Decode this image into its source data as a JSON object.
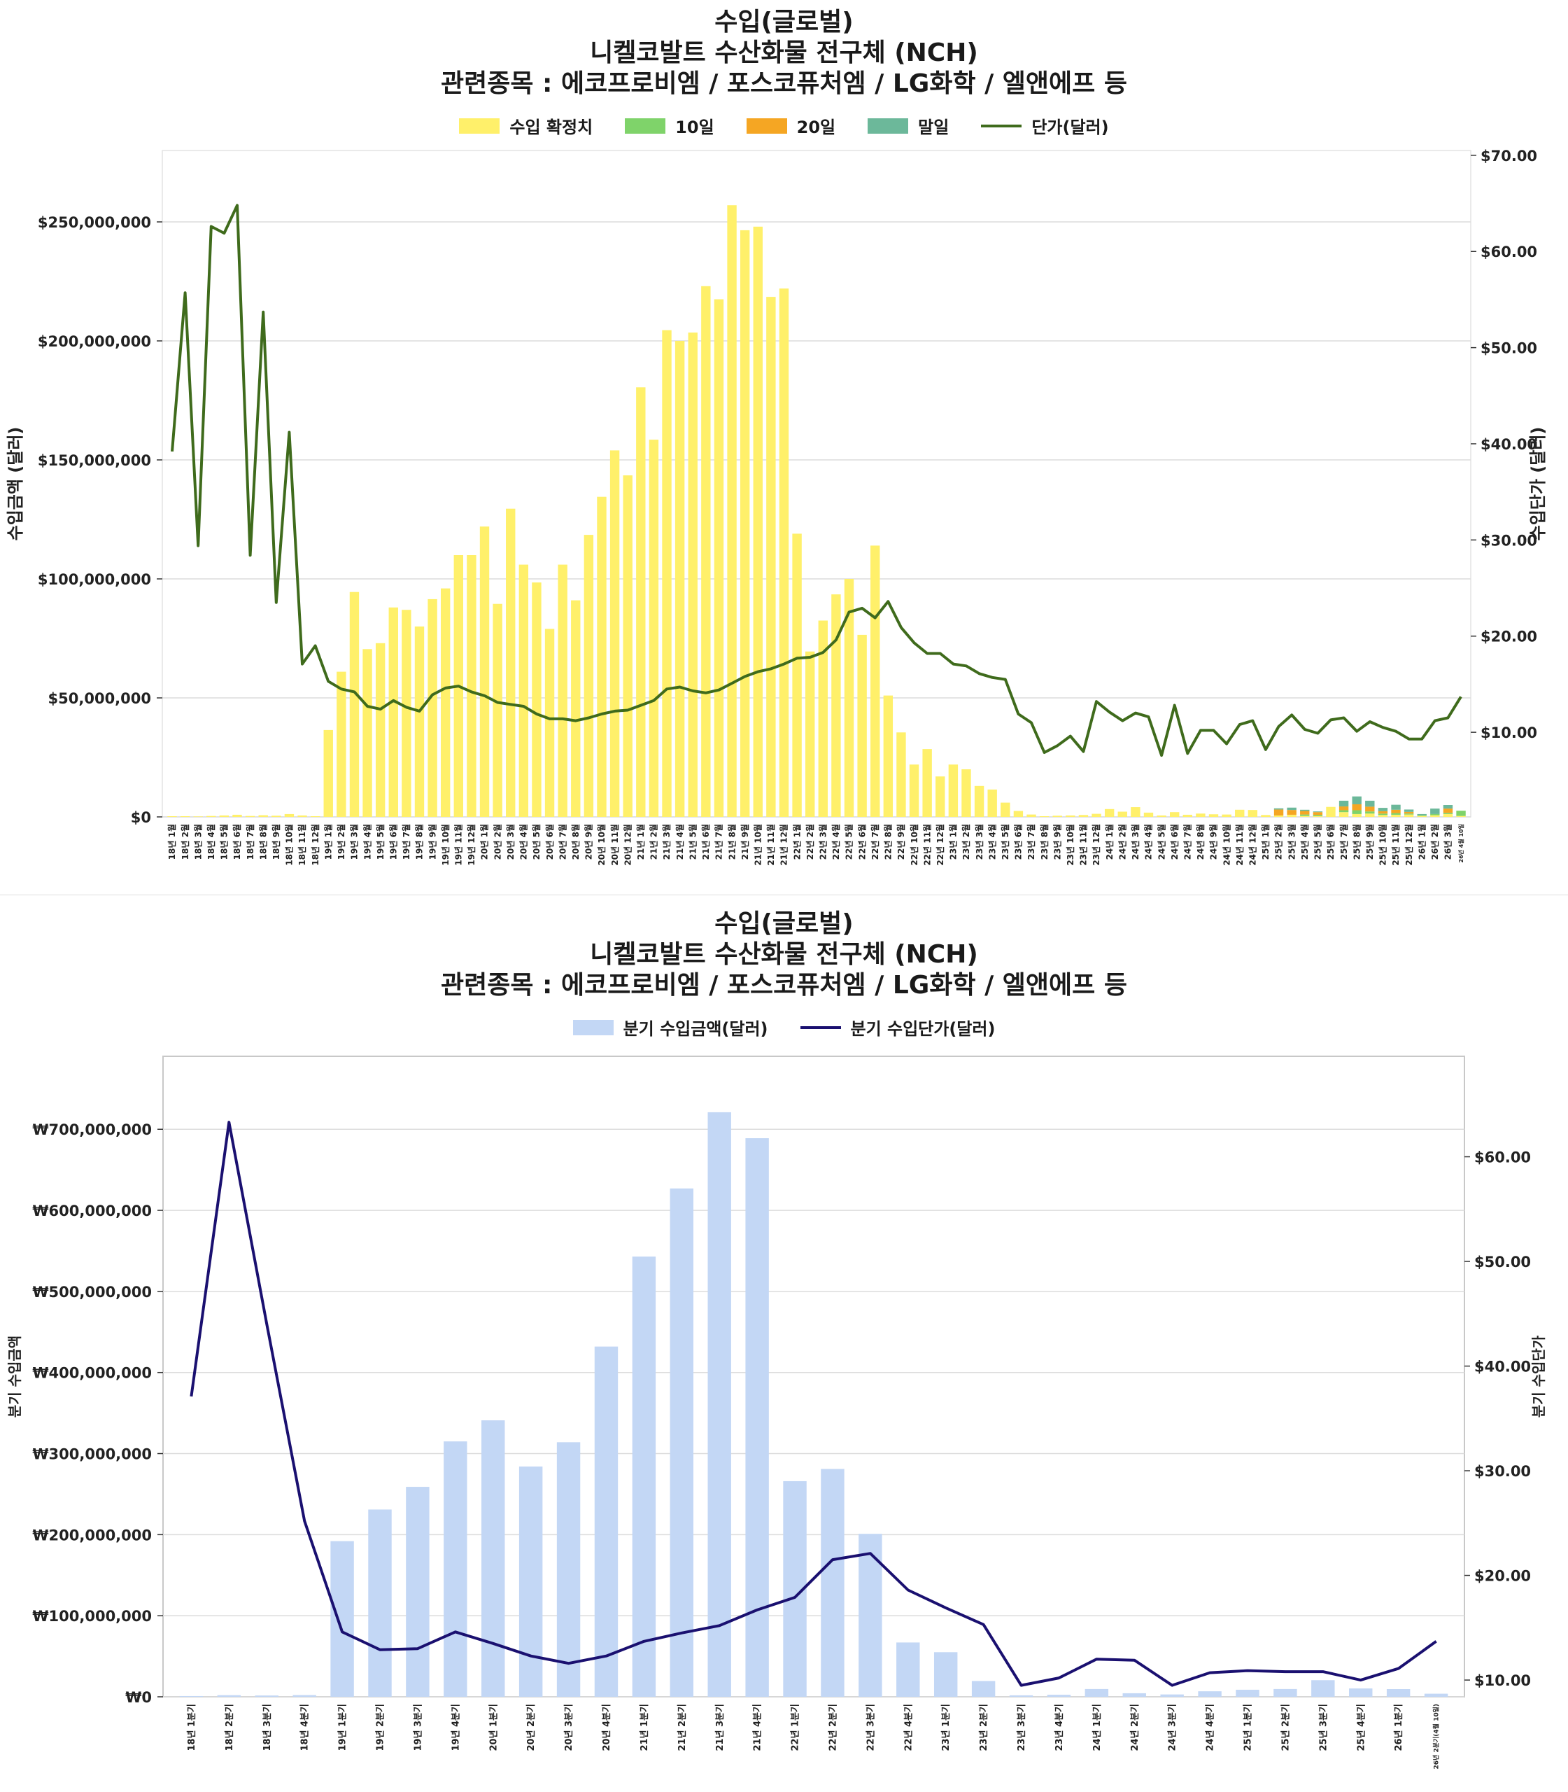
{
  "charts": [
    {
      "id": "monthly",
      "title_lines": [
        "수입(글로벌)",
        "니켈코발트 수산화물 전구체 (NCH)",
        "관련종목 : 에코프로비엠 / 포스코퓨처엠 / LG화학 / 엘앤에프 등"
      ],
      "legend": [
        {
          "label": "수입 확정치",
          "kind": "box",
          "color": "#fff06a"
        },
        {
          "label": "10일",
          "kind": "box",
          "color": "#7fd36a"
        },
        {
          "label": "20일",
          "kind": "box",
          "color": "#f5a623"
        },
        {
          "label": "말일",
          "kind": "box",
          "color": "#6cb89a"
        },
        {
          "label": "단가(달러)",
          "kind": "line",
          "color": "#3f6b1c"
        }
      ]
    },
    {
      "id": "quarterly",
      "title_lines": [
        "수입(글로벌)",
        "니켈코발트 수산화물 전구체 (NCH)",
        "관련종목 : 에코프로비엠 / 포스코퓨처엠 / LG화학 / 엘앤에프 등"
      ],
      "legend": [
        {
          "label": "분기 수입금액(달러)",
          "kind": "box",
          "color": "#c3d7f5"
        },
        {
          "label": "분기 수입단가(달러)",
          "kind": "line",
          "color": "#1a1070"
        }
      ]
    }
  ],
  "chart_data": [
    {
      "type": "bar",
      "subtype": "stacked bar + line (dual axis)",
      "ylabel": "수입금액 (달러)",
      "y2label": "수입단가 (달러)",
      "ylim": [
        0,
        280000000
      ],
      "y2lim": [
        1.2,
        70.5
      ],
      "y_ticks": [
        0,
        50000000,
        100000000,
        150000000,
        200000000,
        250000000
      ],
      "y_tick_labels": [
        "$0",
        "$50,000,000",
        "$100,000,000",
        "$150,000,000",
        "$200,000,000",
        "$250,000,000"
      ],
      "y2_ticks": [
        10,
        20,
        30,
        40,
        50,
        60,
        70
      ],
      "y2_tick_labels": [
        "$10.00",
        "$20.00",
        "$30.00",
        "$40.00",
        "$50.00",
        "$60.00",
        "$70.00"
      ],
      "grid": true,
      "legend_position": "top-center",
      "categories": [
        "18년 1월",
        "18년 2월",
        "18년 3월",
        "18년 4월",
        "18년 5월",
        "18년 6월",
        "18년 7월",
        "18년 8월",
        "18년 9월",
        "18년 10월",
        "18년 11월",
        "18년 12월",
        "19년 1월",
        "19년 2월",
        "19년 3월",
        "19년 4월",
        "19년 5월",
        "19년 6월",
        "19년 7월",
        "19년 8월",
        "19년 9월",
        "19년 10월",
        "19년 11월",
        "19년 12월",
        "20년 1월",
        "20년 2월",
        "20년 3월",
        "20년 4월",
        "20년 5월",
        "20년 6월",
        "20년 7월",
        "20년 8월",
        "20년 9월",
        "20년 10월",
        "20년 11월",
        "20년 12월",
        "21년 1월",
        "21년 2월",
        "21년 3월",
        "21년 4월",
        "21년 5월",
        "21년 6월",
        "21년 7월",
        "21년 8월",
        "21년 9월",
        "21년 10월",
        "21년 11월",
        "21년 12월",
        "22년 1월",
        "22년 2월",
        "22년 3월",
        "22년 4월",
        "22년 5월",
        "22년 6월",
        "22년 7월",
        "22년 8월",
        "22년 9월",
        "22년 10월",
        "22년 11월",
        "22년 12월",
        "23년 1월",
        "23년 2월",
        "23년 3월",
        "23년 4월",
        "23년 5월",
        "23년 6월",
        "23년 7월",
        "23년 8월",
        "23년 9월",
        "23년 10월",
        "23년 11월",
        "23년 12월",
        "24년 1월",
        "24년 2월",
        "24년 3월",
        "24년 4월",
        "24년 5월",
        "24년 6월",
        "24년 7월",
        "24년 8월",
        "24년 9월",
        "24년 10월",
        "24년 11월",
        "24년 12월",
        "25년 1월",
        "25년 2월",
        "25년 3월",
        "25년 4월",
        "25년 5월",
        "25년 6월",
        "25년 7월",
        "25년 8월",
        "25년 9월",
        "25년 10월",
        "25년 11월",
        "25년 12월",
        "26년 1월",
        "26년 2월",
        "26년 3월",
        "26년 4월 10일"
      ],
      "series": [
        {
          "name": "수입 확정치",
          "kind": "bar",
          "color": "#fff06a",
          "values": [
            300000,
            300000,
            200000,
            400000,
            600000,
            900000,
            400000,
            700000,
            500000,
            1200000,
            600000,
            300000,
            36500000,
            61000000,
            94500000,
            70500000,
            73000000,
            88000000,
            87000000,
            80000000,
            91500000,
            96000000,
            110000000,
            110000000,
            122000000,
            89500000,
            129500000,
            106000000,
            98500000,
            79000000,
            106000000,
            91000000,
            118500000,
            134500000,
            154000000,
            143500000,
            180500000,
            158500000,
            204500000,
            200000000,
            203500000,
            223000000,
            217500000,
            257000000,
            246500000,
            248000000,
            218500000,
            222000000,
            119000000,
            69500000,
            82500000,
            93500000,
            100000000,
            76500000,
            114000000,
            51000000,
            35500000,
            22000000,
            28500000,
            17000000,
            22000000,
            20000000,
            13000000,
            11500000,
            6000000,
            2500000,
            1000000,
            300000,
            500000,
            600000,
            800000,
            1300000,
            3300000,
            2200000,
            4100000,
            1800000,
            600000,
            2000000,
            900000,
            1400000,
            1100000,
            1000000,
            3000000,
            2900000,
            800000,
            600000,
            900000,
            400000,
            300000,
            4200000,
            2000000,
            1200000,
            1400000,
            800000,
            900000,
            1000000,
            400000,
            700000,
            1200000,
            400000
          ]
        },
        {
          "name": "10일",
          "kind": "bar",
          "color": "#7fd36a",
          "values": [
            0,
            0,
            0,
            0,
            0,
            0,
            0,
            0,
            0,
            0,
            0,
            0,
            0,
            0,
            0,
            0,
            0,
            0,
            0,
            0,
            0,
            0,
            0,
            0,
            0,
            0,
            0,
            0,
            0,
            0,
            0,
            0,
            0,
            0,
            0,
            0,
            0,
            0,
            0,
            0,
            0,
            0,
            0,
            0,
            0,
            0,
            0,
            0,
            0,
            0,
            0,
            0,
            0,
            0,
            0,
            0,
            0,
            0,
            0,
            0,
            0,
            0,
            0,
            0,
            0,
            0,
            0,
            0,
            0,
            0,
            0,
            0,
            0,
            0,
            0,
            0,
            0,
            0,
            0,
            0,
            0,
            0,
            0,
            0,
            0,
            0,
            0,
            600000,
            500000,
            0,
            800000,
            1600000,
            900000,
            600000,
            700000,
            400000,
            300000,
            500000,
            500000,
            2200000
          ]
        },
        {
          "name": "20일",
          "kind": "bar",
          "color": "#f5a623",
          "values": [
            0,
            0,
            0,
            0,
            0,
            0,
            0,
            0,
            0,
            0,
            0,
            0,
            0,
            0,
            0,
            0,
            0,
            0,
            0,
            0,
            0,
            0,
            0,
            0,
            0,
            0,
            0,
            0,
            0,
            0,
            0,
            0,
            0,
            0,
            0,
            0,
            0,
            0,
            0,
            0,
            0,
            0,
            0,
            0,
            0,
            0,
            0,
            0,
            0,
            0,
            0,
            0,
            0,
            0,
            0,
            0,
            0,
            0,
            0,
            0,
            0,
            0,
            0,
            0,
            0,
            0,
            0,
            0,
            0,
            0,
            0,
            0,
            0,
            0,
            0,
            0,
            0,
            0,
            0,
            0,
            0,
            0,
            0,
            0,
            0,
            2500000,
            2000000,
            1500000,
            1200000,
            0,
            1600000,
            2500000,
            2000000,
            1000000,
            1400000,
            700000,
            0,
            0,
            1800000,
            0
          ]
        },
        {
          "name": "말일",
          "kind": "bar",
          "color": "#6cb89a",
          "values": [
            0,
            0,
            0,
            0,
            0,
            0,
            0,
            0,
            0,
            0,
            0,
            0,
            0,
            0,
            0,
            0,
            0,
            0,
            0,
            0,
            0,
            0,
            0,
            0,
            0,
            0,
            0,
            0,
            0,
            0,
            0,
            0,
            0,
            0,
            0,
            0,
            0,
            0,
            0,
            0,
            0,
            0,
            0,
            0,
            0,
            0,
            0,
            0,
            0,
            0,
            0,
            0,
            0,
            0,
            0,
            0,
            0,
            0,
            0,
            0,
            0,
            0,
            0,
            0,
            0,
            0,
            0,
            0,
            0,
            0,
            0,
            0,
            0,
            0,
            0,
            0,
            0,
            0,
            0,
            0,
            0,
            0,
            0,
            0,
            0,
            500000,
            1000000,
            500000,
            300000,
            0,
            2400000,
            3300000,
            2500000,
            1400000,
            2100000,
            1000000,
            500000,
            2300000,
            1500000,
            0
          ]
        },
        {
          "name": "단가(달러)",
          "kind": "line",
          "axis": "y2",
          "color": "#3f6b1c",
          "values": [
            39.2,
            55.7,
            29.4,
            62.6,
            61.9,
            64.8,
            28.4,
            53.7,
            23.5,
            41.2,
            17.1,
            19.0,
            15.3,
            14.5,
            14.2,
            12.7,
            12.4,
            13.3,
            12.6,
            12.2,
            13.9,
            14.6,
            14.8,
            14.2,
            13.8,
            13.1,
            12.9,
            12.7,
            11.9,
            11.4,
            11.4,
            11.2,
            11.5,
            11.9,
            12.2,
            12.3,
            12.8,
            13.3,
            14.5,
            14.7,
            14.3,
            14.1,
            14.4,
            15.1,
            15.8,
            16.3,
            16.6,
            17.1,
            17.7,
            17.8,
            18.3,
            19.6,
            22.5,
            22.9,
            21.9,
            23.6,
            20.9,
            19.3,
            18.2,
            18.2,
            17.1,
            16.9,
            16.1,
            15.7,
            15.5,
            11.9,
            11.0,
            7.9,
            8.6,
            9.6,
            8.0,
            13.2,
            12.1,
            11.2,
            12.0,
            11.6,
            7.6,
            12.8,
            7.8,
            10.2,
            10.2,
            8.8,
            10.8,
            11.2,
            8.2,
            10.6,
            11.8,
            10.3,
            9.9,
            11.3,
            11.5,
            10.1,
            11.1,
            10.5,
            10.1,
            9.3,
            9.3,
            11.2,
            11.5,
            13.7
          ]
        }
      ]
    },
    {
      "type": "bar",
      "subtype": "bar + line (dual axis)",
      "ylabel": "분기 수입금액",
      "y2label": "분기 수입단가",
      "ylim": [
        0,
        790000000
      ],
      "y2lim": [
        8.4,
        69.6
      ],
      "y_ticks": [
        0,
        100000000,
        200000000,
        300000000,
        400000000,
        500000000,
        600000000,
        700000000
      ],
      "y_tick_labels": [
        "₩0",
        "₩100,000,000",
        "₩200,000,000",
        "₩300,000,000",
        "₩400,000,000",
        "₩500,000,000",
        "₩600,000,000",
        "₩700,000,000"
      ],
      "y2_ticks": [
        10,
        20,
        30,
        40,
        50,
        60
      ],
      "y2_tick_labels": [
        "$10.00",
        "$20.00",
        "$30.00",
        "$40.00",
        "$50.00",
        "$60.00"
      ],
      "grid": true,
      "legend_position": "top-center",
      "categories": [
        "18년 1분기",
        "18년 2분기",
        "18년 3분기",
        "18년 4분기",
        "19년 1분기",
        "19년 2분기",
        "19년 3분기",
        "19년 4분기",
        "20년 1분기",
        "20년 2분기",
        "20년 3분기",
        "20년 4분기",
        "21년 1분기",
        "21년 2분기",
        "21년 3분기",
        "21년 4분기",
        "22년 1분기",
        "22년 2분기",
        "22년 3분기",
        "22년 4분기",
        "23년 1분기",
        "23년 2분기",
        "23년 3분기",
        "23년 4분기",
        "24년 1분기",
        "24년 2분기",
        "24년 3분기",
        "24년 4분기",
        "25년 1분기",
        "25년 2분기",
        "25년 3분기",
        "25년 4분기",
        "26년 1분기",
        "26년 2분기(4월 10일)"
      ],
      "series": [
        {
          "name": "분기 수입금액(달러)",
          "kind": "bar",
          "color": "#c3d7f5",
          "values": [
            900000,
            2000000,
            1600000,
            2100000,
            192000000,
            231000000,
            259000000,
            315000000,
            341000000,
            284000000,
            314000000,
            432000000,
            543000000,
            627000000,
            721000000,
            689000000,
            266000000,
            281000000,
            201000000,
            67000000,
            55000000,
            19500000,
            1800000,
            2500000,
            9600000,
            4400000,
            2900000,
            6800000,
            8700000,
            9600000,
            20500000,
            10300000,
            9500000,
            3800000
          ]
        },
        {
          "name": "분기 수입단가(달러)",
          "kind": "line",
          "axis": "y2",
          "color": "#1a1070",
          "values": [
            37.1,
            63.3,
            44.0,
            25.2,
            14.6,
            12.9,
            13.0,
            14.6,
            13.5,
            12.3,
            11.6,
            12.3,
            13.7,
            14.5,
            15.2,
            16.7,
            17.9,
            21.5,
            22.1,
            18.6,
            16.9,
            15.3,
            9.5,
            10.2,
            12.0,
            11.9,
            9.5,
            10.7,
            10.9,
            10.8,
            10.8,
            10.0,
            11.1,
            13.7
          ]
        }
      ]
    }
  ]
}
